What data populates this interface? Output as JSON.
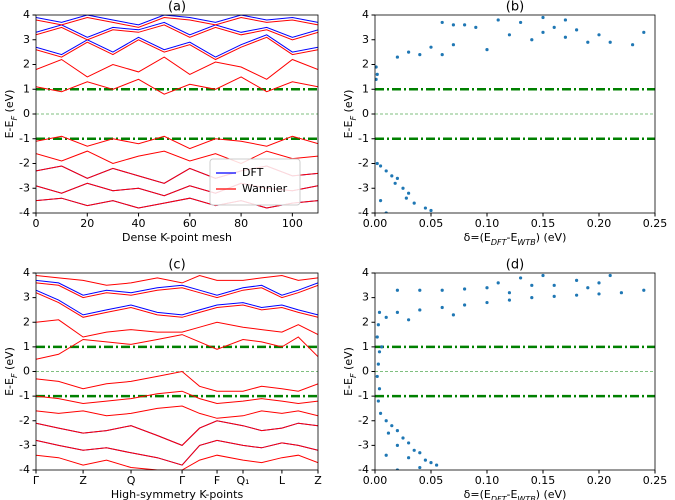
{
  "chart_data": [
    {
      "type": "line",
      "title": "(a)",
      "xlabel": "Dense K-point mesh",
      "ylabel": [
        "E-E",
        "F",
        " (eV)"
      ],
      "xlim": [
        0,
        110
      ],
      "ylim": [
        -4,
        4
      ],
      "xticks": [
        0,
        20,
        40,
        60,
        80,
        100
      ],
      "yticks": [
        -4,
        -3,
        -2,
        -1,
        0,
        1,
        2,
        3,
        4
      ],
      "reference_lines": [
        {
          "value": 1,
          "style": "dashdot"
        },
        {
          "value": 0,
          "style": "dashed"
        },
        {
          "value": -1,
          "style": "dashdot"
        }
      ],
      "reference_color": "#008000",
      "legend": "lower right",
      "x": [
        0,
        10,
        20,
        30,
        40,
        50,
        60,
        70,
        80,
        90,
        100,
        110
      ],
      "series": [
        {
          "name": "DFT",
          "color": "#0000ff",
          "bands": [
            [
              2.7,
              2.4,
              3.0,
              2.5,
              3.1,
              2.6,
              2.9,
              2.3,
              2.8,
              3.2,
              2.5,
              2.7
            ],
            [
              3.3,
              3.6,
              3.1,
              3.5,
              3.4,
              3.7,
              3.2,
              3.6,
              3.3,
              3.5,
              3.1,
              3.4
            ],
            [
              3.9,
              3.7,
              4.0,
              3.8,
              3.6,
              4.0,
              3.9,
              3.7,
              4.0,
              3.8,
              3.9,
              3.7
            ],
            [
              -2.3,
              -2.1,
              -2.6,
              -2.2,
              -2.5,
              -2.8,
              -2.2,
              -2.6,
              -2.3,
              -2.1,
              -2.5,
              -2.4
            ],
            [
              -2.9,
              -3.2,
              -2.8,
              -3.1,
              -3.0,
              -3.3,
              -2.9,
              -3.2,
              -2.8,
              -3.0,
              -3.1,
              -2.9
            ],
            [
              -3.5,
              -3.4,
              -3.7,
              -3.5,
              -3.8,
              -3.6,
              -3.4,
              -3.7,
              -3.5,
              -3.8,
              -3.6,
              -3.5
            ]
          ]
        },
        {
          "name": "Wannier",
          "color": "#ff0000",
          "bands": [
            [
              1.1,
              0.9,
              1.3,
              1.0,
              1.4,
              0.8,
              1.2,
              1.0,
              1.5,
              0.9,
              1.3,
              1.1
            ],
            [
              1.8,
              2.2,
              1.5,
              2.0,
              1.7,
              2.3,
              1.6,
              2.1,
              1.9,
              1.4,
              2.2,
              1.8
            ],
            [
              2.6,
              2.3,
              2.9,
              2.4,
              3.0,
              2.5,
              2.8,
              2.2,
              2.7,
              3.1,
              2.4,
              2.6
            ],
            [
              3.2,
              3.5,
              3.0,
              3.4,
              3.3,
              3.6,
              3.1,
              3.5,
              3.2,
              3.4,
              3.0,
              3.3
            ],
            [
              3.8,
              3.6,
              3.9,
              3.7,
              3.5,
              3.9,
              3.8,
              3.6,
              3.9,
              3.7,
              3.8,
              3.6
            ],
            [
              -1.1,
              -0.9,
              -1.3,
              -1.0,
              -1.2,
              -0.9,
              -1.4,
              -1.0,
              -1.1,
              -1.3,
              -0.9,
              -1.2
            ],
            [
              -1.6,
              -1.9,
              -1.5,
              -2.0,
              -1.7,
              -1.5,
              -1.9,
              -1.6,
              -2.0,
              -1.5,
              -1.8,
              -1.7
            ],
            [
              -2.3,
              -2.1,
              -2.6,
              -2.2,
              -2.5,
              -2.8,
              -2.2,
              -2.6,
              -2.3,
              -2.1,
              -2.5,
              -2.4
            ],
            [
              -2.9,
              -3.2,
              -2.8,
              -3.1,
              -3.0,
              -3.3,
              -2.9,
              -3.2,
              -2.8,
              -3.0,
              -3.1,
              -2.9
            ],
            [
              -3.5,
              -3.4,
              -3.7,
              -3.5,
              -3.8,
              -3.6,
              -3.4,
              -3.7,
              -3.5,
              -3.8,
              -3.6,
              -3.5
            ]
          ]
        }
      ]
    },
    {
      "type": "scatter",
      "title": "(b)",
      "xlabel": [
        "δ=(E",
        "DFT",
        "-E",
        "WTB",
        ") (eV)"
      ],
      "ylabel": [
        "E-E",
        "F",
        " (eV)"
      ],
      "xlim": [
        0,
        0.25
      ],
      "ylim": [
        -4,
        4
      ],
      "xticks": [
        {
          "value": 0,
          "label": "0.00"
        },
        {
          "value": 0.05,
          "label": "0.05"
        },
        {
          "value": 0.1,
          "label": "0.10"
        },
        {
          "value": 0.15,
          "label": "0.15"
        },
        {
          "value": 0.2,
          "label": "0.20"
        },
        {
          "value": 0.25,
          "label": "0.25"
        }
      ],
      "yticks": [
        -4,
        -3,
        -2,
        -1,
        0,
        1,
        2,
        3,
        4
      ],
      "reference_lines": [
        {
          "value": 1,
          "style": "dashdot"
        },
        {
          "value": 0,
          "style": "dashed"
        },
        {
          "value": -1,
          "style": "dashdot"
        }
      ],
      "reference_color": "#008000",
      "color": "#1f77b4",
      "x": [
        0.15,
        0.17,
        0.11,
        0.13,
        0.06,
        0.08,
        0.16,
        0.09,
        0.18,
        0.15,
        0.24,
        0.2,
        0.12,
        0.17,
        0.14,
        0.21,
        0.19,
        0.23,
        0.07,
        0.05,
        0.1,
        0.03,
        0.04,
        0.02,
        0.06,
        0.07,
        0.001,
        0.002,
        0.001,
        0.002,
        0.005,
        0.01,
        0.015,
        0.02,
        0.018,
        0.025,
        0.03,
        0.028,
        0.035,
        0.045,
        0.05,
        0.01,
        0.005
      ],
      "y": [
        3.9,
        3.8,
        3.8,
        3.7,
        3.7,
        3.6,
        3.5,
        3.5,
        3.4,
        3.3,
        3.3,
        3.2,
        3.2,
        3.1,
        3.0,
        2.9,
        2.9,
        2.8,
        2.8,
        2.7,
        2.6,
        2.5,
        2.4,
        2.3,
        2.4,
        3.6,
        1.9,
        1.6,
        1.4,
        -2.0,
        -2.1,
        -2.3,
        -2.5,
        -2.6,
        -2.8,
        -3.0,
        -3.2,
        -3.4,
        -3.6,
        -3.8,
        -3.9,
        -4.0,
        -3.5
      ]
    },
    {
      "type": "line",
      "title": "(c)",
      "xlabel": "High-symmetry K-points",
      "ylabel": [
        "E-E",
        "F",
        " (eV)"
      ],
      "xlim": [
        0,
        100
      ],
      "ylim": [
        -4,
        4
      ],
      "xticks": [
        {
          "value": 0,
          "label": "Γ"
        },
        {
          "value": 16.7,
          "label": "Z"
        },
        {
          "value": 33.7,
          "label": "Q"
        },
        {
          "value": 51.8,
          "label": "Γ"
        },
        {
          "value": 64.2,
          "label": "F"
        },
        {
          "value": 73.4,
          "label": "Q₁"
        },
        {
          "value": 87.2,
          "label": "L"
        },
        {
          "value": 100,
          "label": "Z"
        }
      ],
      "yticks": [
        -4,
        -3,
        -2,
        -1,
        0,
        1,
        2,
        3,
        4
      ],
      "reference_lines": [
        {
          "value": 1,
          "style": "dashdot"
        },
        {
          "value": 0,
          "style": "dashed"
        },
        {
          "value": -1,
          "style": "dashdot"
        }
      ],
      "reference_color": "#008000",
      "x": [
        0,
        8,
        16.7,
        25,
        33.7,
        43,
        51.8,
        58,
        64.2,
        73.4,
        80,
        87.2,
        93,
        100
      ],
      "series": [
        {
          "name": "DFT",
          "color": "#0000ff",
          "bands": [
            [
              3.3,
              2.9,
              2.3,
              2.5,
              2.7,
              2.4,
              2.3,
              2.5,
              2.7,
              2.8,
              2.6,
              2.7,
              2.5,
              2.3
            ],
            [
              3.7,
              3.6,
              3.1,
              3.3,
              3.2,
              3.4,
              3.5,
              3.3,
              3.1,
              3.4,
              3.5,
              3.1,
              3.3,
              3.6
            ],
            [
              -2.1,
              -2.3,
              -2.5,
              -2.4,
              -2.2,
              -2.6,
              -3.0,
              -2.3,
              -2.0,
              -2.2,
              -2.4,
              -2.3,
              -2.1,
              -2.2
            ],
            [
              -2.8,
              -3.0,
              -3.2,
              -3.1,
              -3.3,
              -3.5,
              -3.8,
              -3.0,
              -2.8,
              -3.0,
              -3.1,
              -2.9,
              -3.0,
              -3.2
            ]
          ]
        },
        {
          "name": "Wannier",
          "color": "#ff0000",
          "bands": [
            [
              0.5,
              0.7,
              1.3,
              1.2,
              1.1,
              1.3,
              1.5,
              1.2,
              0.9,
              1.3,
              1.2,
              1.0,
              1.4,
              0.6
            ],
            [
              2.0,
              2.1,
              1.4,
              1.6,
              1.7,
              1.6,
              1.6,
              1.8,
              2.0,
              1.8,
              1.7,
              1.6,
              1.9,
              1.5
            ],
            [
              3.2,
              2.8,
              2.2,
              2.4,
              2.6,
              2.3,
              2.2,
              2.4,
              2.6,
              2.7,
              2.5,
              2.6,
              2.4,
              2.2
            ],
            [
              3.6,
              3.5,
              3.0,
              3.2,
              3.1,
              3.3,
              3.4,
              3.2,
              3.0,
              3.3,
              3.4,
              3.0,
              3.2,
              3.5
            ],
            [
              3.9,
              3.8,
              3.7,
              3.5,
              3.6,
              3.8,
              3.6,
              3.9,
              3.7,
              3.7,
              3.8,
              3.9,
              3.7,
              3.8
            ],
            [
              -0.3,
              -0.4,
              -0.7,
              -0.5,
              -0.4,
              -0.2,
              0.0,
              -0.6,
              -0.8,
              -0.8,
              -0.6,
              -0.7,
              -0.8,
              -0.5
            ],
            [
              -1.0,
              -1.1,
              -1.3,
              -1.2,
              -1.1,
              -0.9,
              -0.8,
              -1.1,
              -1.3,
              -1.2,
              -1.1,
              -1.2,
              -1.3,
              -1.2
            ],
            [
              -1.6,
              -1.7,
              -1.6,
              -1.8,
              -1.7,
              -1.5,
              -1.4,
              -1.7,
              -1.9,
              -1.8,
              -1.6,
              -1.7,
              -1.6,
              -1.8
            ],
            [
              -2.1,
              -2.3,
              -2.5,
              -2.4,
              -2.2,
              -2.6,
              -3.0,
              -2.3,
              -2.0,
              -2.2,
              -2.4,
              -2.3,
              -2.1,
              -2.2
            ],
            [
              -2.8,
              -3.0,
              -3.2,
              -3.1,
              -3.3,
              -3.5,
              -3.8,
              -3.0,
              -2.8,
              -3.0,
              -3.1,
              -2.9,
              -3.0,
              -3.2
            ],
            [
              -3.4,
              -3.5,
              -3.8,
              -3.6,
              -3.9,
              -4.0,
              -4.0,
              -3.6,
              -3.4,
              -3.6,
              -3.7,
              -3.5,
              -3.4,
              -3.7
            ]
          ]
        }
      ]
    },
    {
      "type": "scatter",
      "title": "(d)",
      "xlabel": [
        "δ=(E",
        "DFT",
        "-E",
        "WTB",
        ") (eV)"
      ],
      "ylabel": [
        "E-E",
        "F",
        " (eV)"
      ],
      "xlim": [
        0,
        0.25
      ],
      "ylim": [
        -4,
        4
      ],
      "xticks": [
        {
          "value": 0,
          "label": "0.00"
        },
        {
          "value": 0.05,
          "label": "0.05"
        },
        {
          "value": 0.1,
          "label": "0.10"
        },
        {
          "value": 0.15,
          "label": "0.15"
        },
        {
          "value": 0.2,
          "label": "0.20"
        },
        {
          "value": 0.25,
          "label": "0.25"
        }
      ],
      "yticks": [
        -4,
        -3,
        -2,
        -1,
        0,
        1,
        2,
        3,
        4
      ],
      "reference_lines": [
        {
          "value": 1,
          "style": "dashdot"
        },
        {
          "value": 0,
          "style": "dashed"
        },
        {
          "value": -1,
          "style": "dashdot"
        }
      ],
      "reference_color": "#008000",
      "color": "#1f77b4",
      "x": [
        0.02,
        0.04,
        0.06,
        0.08,
        0.1,
        0.01,
        0.02,
        0.04,
        0.06,
        0.08,
        0.1,
        0.12,
        0.14,
        0.16,
        0.18,
        0.2,
        0.22,
        0.24,
        0.11,
        0.13,
        0.15,
        0.16,
        0.18,
        0.19,
        0.2,
        0.21,
        0.14,
        0.12,
        0.03,
        0.07,
        0.003,
        0.002,
        0.004,
        0.003,
        0.002,
        0.004,
        0.003,
        0.005,
        0.004,
        0.006,
        0.01,
        0.015,
        0.02,
        0.012,
        0.025,
        0.03,
        0.02,
        0.035,
        0.04,
        0.03,
        0.045,
        0.05,
        0.055,
        0.04,
        0.02,
        0.01
      ],
      "y": [
        3.3,
        3.3,
        3.3,
        3.35,
        3.4,
        2.2,
        2.4,
        2.5,
        2.6,
        2.7,
        2.8,
        2.9,
        3.0,
        3.05,
        3.1,
        3.15,
        3.2,
        3.3,
        3.6,
        3.8,
        3.9,
        3.5,
        3.7,
        3.4,
        3.6,
        3.9,
        3.5,
        3.2,
        2.1,
        2.3,
        1.9,
        1.4,
        0.8,
        0.3,
        -0.2,
        -0.7,
        -1.2,
        -1.7,
        2.4,
        1.0,
        -2.0,
        -2.2,
        -2.4,
        -2.5,
        -2.7,
        -2.9,
        -3.0,
        -3.2,
        -3.3,
        -3.5,
        -3.6,
        -3.7,
        -3.8,
        -3.9,
        -4.0,
        -3.4
      ]
    }
  ]
}
